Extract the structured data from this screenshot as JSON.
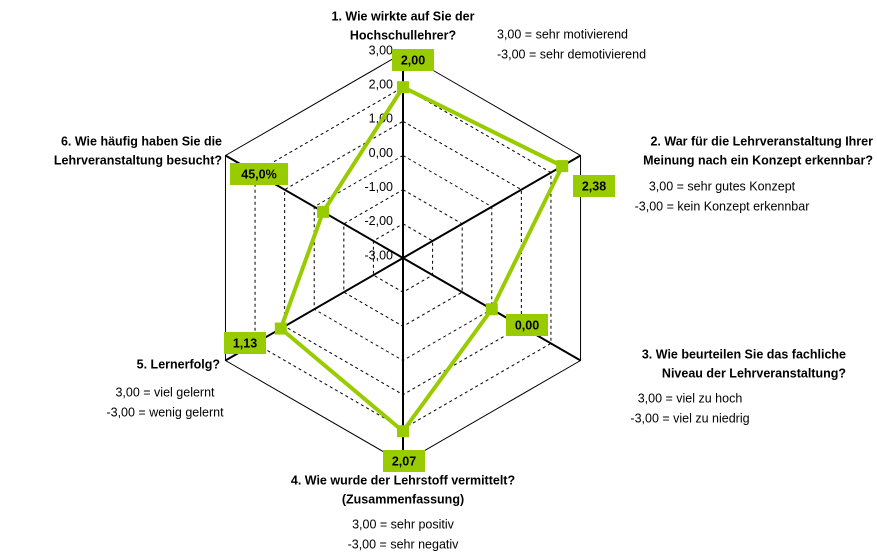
{
  "chart_data": {
    "type": "radar",
    "categories": [
      [
        "1. Wie wirkte auf Sie der",
        "Hochschullehrer?"
      ],
      [
        "2. War für die Lehrveranstaltung  Ihrer",
        "Meinung nach ein Konzept erkennbar?"
      ],
      [
        "3. Wie beurteilen  Sie das fachliche",
        "Niveau der Lehrveranstaltung?"
      ],
      [
        "4. Wie wurde der Lehrstoff  vermittelt?",
        "(Zusammenfassung)"
      ],
      [
        "5. Lernerfolg?"
      ],
      [
        "6. Wie häufig haben Sie die",
        "Lehrveranstaltung besucht?"
      ]
    ],
    "notes": [
      [
        "3,00 = sehr motivierend",
        "-3,00 = sehr demotivierend"
      ],
      [
        "3,00 = sehr gutes Konzept",
        "-3,00 = kein Konzept erkennbar"
      ],
      [
        "3,00 = viel zu hoch",
        "-3,00 = viel zu niedrig"
      ],
      [
        "3,00 = sehr positiv",
        "-3,00 = sehr negativ"
      ],
      [
        "3,00 = viel gelernt",
        "-3,00 = wenig gelernt"
      ],
      []
    ],
    "values": [
      2.0,
      2.38,
      0.0,
      2.07,
      1.13,
      45
    ],
    "value_labels": [
      "2,00",
      "2,38",
      "0,00",
      "2,07",
      "1,13",
      "45,0%"
    ],
    "value_axes": [
      "y",
      "y",
      "y",
      "y",
      "y",
      "y2"
    ],
    "color": "#99cc00",
    "ylim": [
      -3,
      3
    ],
    "yticks": [
      {
        "value": -3,
        "label": "-3,00"
      },
      {
        "value": -2,
        "label": "-2,00"
      },
      {
        "value": -1,
        "label": "-1,00"
      },
      {
        "value": 0,
        "label": "0,00"
      },
      {
        "value": 1,
        "label": "1,00"
      },
      {
        "value": 2,
        "label": "2,00"
      },
      {
        "value": 3,
        "label": "3,00"
      }
    ],
    "y2lim": [
      0,
      100
    ],
    "grid": true
  }
}
